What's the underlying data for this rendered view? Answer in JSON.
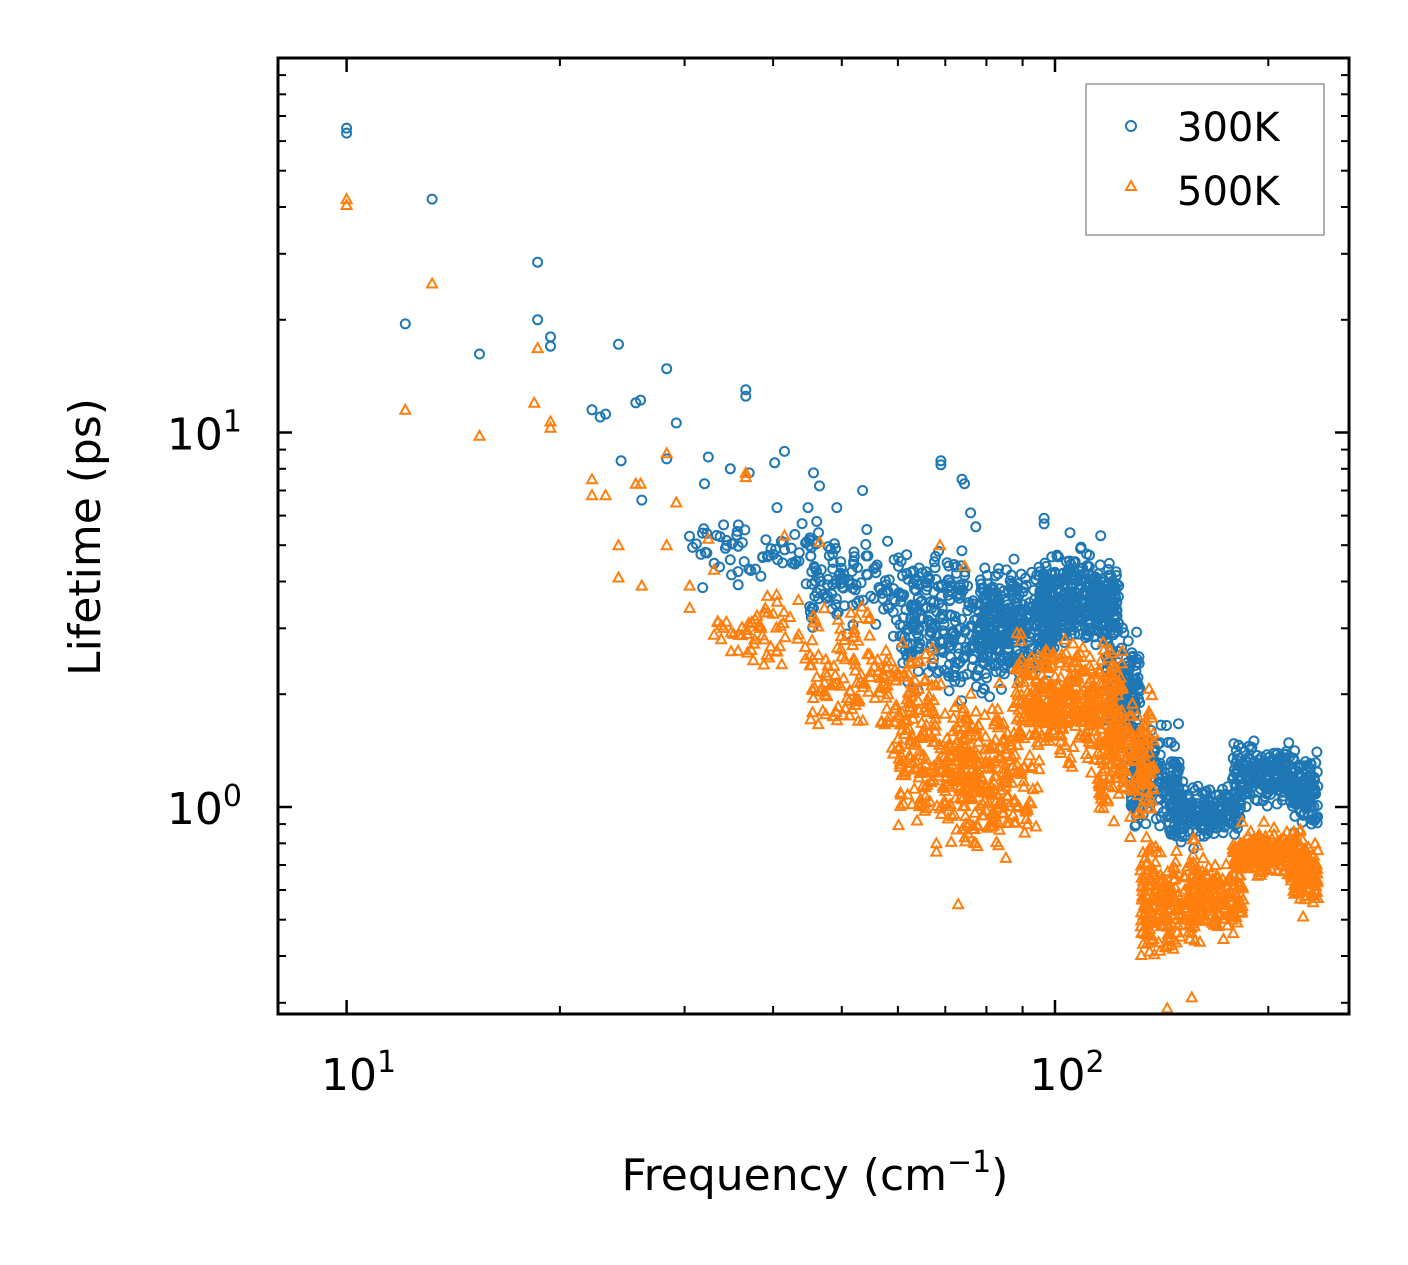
{
  "chart_data": {
    "type": "scatter",
    "xscale": "log",
    "yscale": "log",
    "xlim": [
      8.0,
      260
    ],
    "ylim": [
      0.28,
      100
    ],
    "xlabel": "Frequency (cm",
    "xlabel_sup": "−1",
    "xlabel_end": ")",
    "ylabel": "Lifetime (ps)",
    "xticks": [
      {
        "base": "10",
        "exp": "1",
        "value": 10
      },
      {
        "base": "10",
        "exp": "2",
        "value": 100
      }
    ],
    "yticks": [
      {
        "base": "10",
        "exp": "0",
        "value": 1
      },
      {
        "base": "10",
        "exp": "1",
        "value": 10
      }
    ],
    "legend": {
      "position": "top-right"
    },
    "series": [
      {
        "name": "300K",
        "color": "#1f77b4",
        "marker": "circle",
        "points": [
          [
            10.0,
            65.0
          ],
          [
            10.0,
            63.0
          ],
          [
            13.2,
            42.0
          ],
          [
            12.1,
            19.5
          ],
          [
            15.4,
            16.2
          ],
          [
            18.6,
            28.5
          ],
          [
            18.6,
            20.0
          ],
          [
            19.4,
            18.0
          ],
          [
            19.4,
            17.0
          ],
          [
            24.2,
            17.2
          ],
          [
            28.3,
            14.8
          ],
          [
            22.2,
            11.5
          ],
          [
            22.8,
            11.0
          ],
          [
            23.2,
            11.2
          ],
          [
            25.6,
            12.0
          ],
          [
            26.0,
            12.2
          ],
          [
            29.2,
            10.6
          ],
          [
            24.4,
            8.4
          ],
          [
            28.3,
            8.5
          ],
          [
            32.4,
            8.6
          ],
          [
            36.6,
            13.0
          ],
          [
            36.6,
            12.5
          ],
          [
            41.5,
            8.9
          ],
          [
            40.2,
            8.3
          ],
          [
            34.8,
            8.0
          ],
          [
            37.0,
            7.8
          ],
          [
            45.6,
            7.8
          ],
          [
            46.5,
            7.2
          ],
          [
            32.0,
            7.3
          ],
          [
            26.1,
            6.6
          ],
          [
            40.5,
            6.3
          ],
          [
            44.8,
            6.3
          ],
          [
            49.2,
            6.3
          ],
          [
            53.5,
            7.0
          ],
          [
            69.0,
            8.4
          ],
          [
            69.0,
            8.2
          ],
          [
            73.9,
            7.5
          ],
          [
            74.5,
            7.3
          ],
          [
            76.0,
            6.1
          ],
          [
            77.3,
            5.6
          ],
          [
            96.5,
            5.9
          ],
          [
            96.5,
            5.7
          ],
          [
            105.0,
            5.4
          ],
          [
            116.0,
            5.3
          ]
        ],
        "regions": [
          {
            "xmin": 30,
            "xmax": 55,
            "ymin": 3.6,
            "ymax": 6.2,
            "n": 90
          },
          {
            "xmin": 45,
            "xmax": 75,
            "ymin": 2.7,
            "ymax": 5.5,
            "n": 160
          },
          {
            "xmin": 60,
            "xmax": 88,
            "ymin": 1.8,
            "ymax": 4.6,
            "n": 240
          },
          {
            "xmin": 78,
            "xmax": 100,
            "ymin": 1.9,
            "ymax": 4.9,
            "n": 300
          },
          {
            "xmin": 95,
            "xmax": 123,
            "ymin": 2.4,
            "ymax": 5.2,
            "n": 420
          },
          {
            "xmin": 118,
            "xmax": 132,
            "ymin": 1.3,
            "ymax": 3.3,
            "n": 160
          },
          {
            "xmin": 128,
            "xmax": 150,
            "ymin": 0.8,
            "ymax": 1.8,
            "n": 170
          },
          {
            "xmin": 145,
            "xmax": 165,
            "ymin": 0.75,
            "ymax": 1.25,
            "n": 120
          },
          {
            "xmin": 162,
            "xmax": 183,
            "ymin": 0.8,
            "ymax": 1.2,
            "n": 100
          },
          {
            "xmin": 178,
            "xmax": 218,
            "ymin": 0.95,
            "ymax": 1.55,
            "n": 220
          },
          {
            "xmin": 215,
            "xmax": 235,
            "ymin": 0.8,
            "ymax": 1.5,
            "n": 120
          }
        ]
      },
      {
        "name": "500K",
        "color": "#ff7f0e",
        "marker": "triangle",
        "points": [
          [
            10.0,
            42.0
          ],
          [
            10.0,
            40.5
          ],
          [
            13.2,
            25.0
          ],
          [
            12.1,
            11.5
          ],
          [
            15.4,
            9.8
          ],
          [
            18.6,
            16.8
          ],
          [
            18.4,
            12.0
          ],
          [
            19.4,
            10.7
          ],
          [
            19.4,
            10.3
          ],
          [
            22.2,
            7.5
          ],
          [
            22.2,
            6.8
          ],
          [
            23.2,
            6.8
          ],
          [
            25.6,
            7.3
          ],
          [
            26.0,
            7.3
          ],
          [
            28.3,
            8.8
          ],
          [
            28.3,
            5.0
          ],
          [
            32.4,
            5.2
          ],
          [
            24.2,
            5.0
          ],
          [
            24.2,
            4.1
          ],
          [
            26.1,
            3.9
          ],
          [
            29.2,
            6.5
          ],
          [
            33.0,
            4.3
          ],
          [
            36.6,
            7.8
          ],
          [
            36.6,
            7.6
          ],
          [
            41.5,
            5.3
          ],
          [
            46.5,
            5.1
          ],
          [
            68.8,
            5.0
          ],
          [
            74.5,
            4.4
          ],
          [
            30.5,
            3.9
          ],
          [
            30.5,
            3.4
          ],
          [
            73.0,
            0.55
          ],
          [
            68.0,
            0.8
          ],
          [
            68.0,
            0.76
          ],
          [
            144,
            0.29
          ],
          [
            156,
            0.31
          ],
          [
            183,
            0.58
          ],
          [
            224,
            0.51
          ]
        ],
        "regions": [
          {
            "xmin": 33,
            "xmax": 55,
            "ymin": 2.2,
            "ymax": 4.0,
            "n": 80
          },
          {
            "xmin": 45,
            "xmax": 68,
            "ymin": 1.3,
            "ymax": 3.3,
            "n": 150
          },
          {
            "xmin": 60,
            "xmax": 88,
            "ymin": 0.72,
            "ymax": 2.4,
            "n": 260
          },
          {
            "xmin": 70,
            "xmax": 95,
            "ymin": 0.62,
            "ymax": 2.0,
            "n": 160
          },
          {
            "xmin": 88,
            "xmax": 125,
            "ymin": 1.2,
            "ymax": 3.1,
            "n": 420
          },
          {
            "xmin": 115,
            "xmax": 138,
            "ymin": 0.8,
            "ymax": 2.2,
            "n": 180
          },
          {
            "xmin": 132,
            "xmax": 162,
            "ymin": 0.35,
            "ymax": 0.9,
            "n": 240
          },
          {
            "xmin": 155,
            "xmax": 185,
            "ymin": 0.42,
            "ymax": 0.8,
            "n": 140
          },
          {
            "xmin": 178,
            "xmax": 220,
            "ymin": 0.62,
            "ymax": 0.92,
            "n": 200
          },
          {
            "xmin": 215,
            "xmax": 235,
            "ymin": 0.5,
            "ymax": 0.95,
            "n": 110
          }
        ]
      }
    ]
  }
}
